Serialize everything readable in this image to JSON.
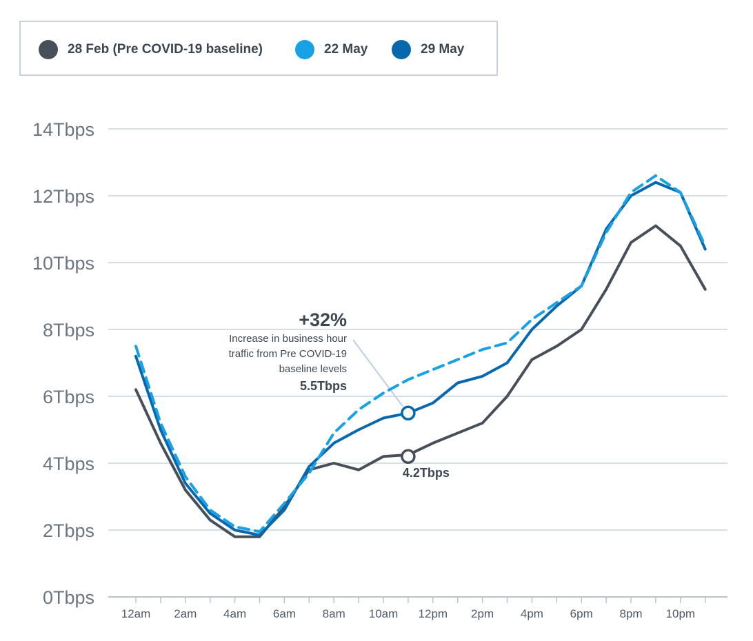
{
  "legend": {
    "items": [
      {
        "label": "28 Feb (Pre COVID-19 baseline)",
        "color": "#464f5a"
      },
      {
        "label": "22 May",
        "color": "#19a1e6"
      },
      {
        "label": "29 May",
        "color": "#0868ad"
      }
    ]
  },
  "chart_data": {
    "type": "line",
    "ylabel": "",
    "xlabel": "",
    "ylim": [
      0,
      14
    ],
    "y_ticks": [
      0,
      2,
      4,
      6,
      8,
      10,
      12,
      14
    ],
    "y_tick_labels": [
      "0Tbps",
      "2Tbps",
      "4Tbps",
      "6Tbps",
      "8Tbps",
      "10Tbps",
      "12Tbps",
      "14Tbps"
    ],
    "x": [
      0,
      1,
      2,
      3,
      4,
      5,
      6,
      7,
      8,
      9,
      10,
      11,
      12,
      13,
      14,
      15,
      16,
      17,
      18,
      19,
      20,
      21,
      22,
      23
    ],
    "x_tick_labels": [
      "12am",
      "2am",
      "4am",
      "6am",
      "8am",
      "10am",
      "12pm",
      "2pm",
      "4pm",
      "6pm",
      "8pm",
      "10pm"
    ],
    "x_tick_label_hours": [
      0,
      2,
      4,
      6,
      8,
      10,
      12,
      14,
      16,
      18,
      20,
      22
    ],
    "grid": true,
    "series": [
      {
        "name": "28 Feb (Pre COVID-19 baseline)",
        "color": "#464f5a",
        "dashed": false,
        "values": [
          6.2,
          4.6,
          3.2,
          2.3,
          1.8,
          1.8,
          2.7,
          3.8,
          4.0,
          3.8,
          4.2,
          4.25,
          4.6,
          4.9,
          5.2,
          6.0,
          7.1,
          7.5,
          8.0,
          9.2,
          10.6,
          11.1,
          10.5,
          9.2
        ]
      },
      {
        "name": "22 May",
        "color": "#19a1e6",
        "dashed": true,
        "values": [
          7.5,
          5.2,
          3.6,
          2.6,
          2.1,
          1.95,
          2.8,
          3.7,
          4.9,
          5.6,
          6.1,
          6.5,
          6.8,
          7.1,
          7.4,
          7.6,
          8.3,
          8.8,
          9.3,
          10.9,
          12.1,
          12.6,
          12.1,
          10.5
        ]
      },
      {
        "name": "29 May",
        "color": "#0868ad",
        "dashed": false,
        "values": [
          7.2,
          5.0,
          3.4,
          2.5,
          2.0,
          1.85,
          2.6,
          3.9,
          4.6,
          5.0,
          5.35,
          5.5,
          5.8,
          6.4,
          6.6,
          7.0,
          8.0,
          8.7,
          9.3,
          11.0,
          12.0,
          12.4,
          12.1,
          10.4
        ]
      }
    ],
    "annotations": [
      {
        "title": "+32%",
        "lines": [
          "Increase in business hour",
          "traffic from Pre COVID-19",
          "baseline levels"
        ],
        "value_label": "5.5Tbps",
        "x": 11,
        "y": 5.5
      },
      {
        "value_label": "4.2Tbps",
        "x": 11,
        "y": 4.2
      }
    ]
  }
}
